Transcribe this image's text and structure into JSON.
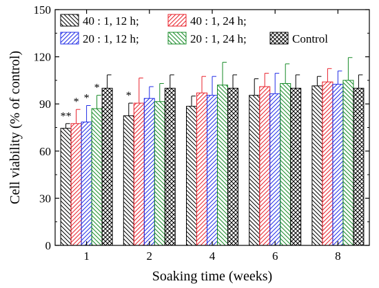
{
  "chart_data": {
    "type": "bar",
    "title": "",
    "xlabel": "Soaking time (weeks)",
    "ylabel": "Cell viability (% of control)",
    "categories": [
      "1",
      "2",
      "4",
      "6",
      "8"
    ],
    "ylim": [
      0,
      150
    ],
    "yticks": [
      "0",
      "30",
      "60",
      "90",
      "120",
      "150"
    ],
    "grid": false,
    "legend_position": "top",
    "series": [
      {
        "name": "40 : 1, 12 h;",
        "color": "#000000",
        "pattern": "hatch-back",
        "values": [
          74.5,
          82.5,
          88.5,
          95.5,
          101.5
        ],
        "errors": [
          3.0,
          8.0,
          6.5,
          10.5,
          6.0
        ],
        "sig": [
          "**",
          "*",
          "",
          "",
          ""
        ]
      },
      {
        "name": "40 : 1, 24 h;",
        "color": "#e8202a",
        "pattern": "hatch-fwd",
        "values": [
          77.5,
          90.5,
          97.0,
          101.0,
          104.0
        ],
        "errors": [
          9.0,
          16.0,
          10.5,
          8.5,
          8.5
        ],
        "sig": [
          "*",
          "",
          "",
          "",
          ""
        ]
      },
      {
        "name": "20 : 1, 12 h;",
        "color": "#1f2be6",
        "pattern": "hatch-fwd",
        "values": [
          78.5,
          93.5,
          95.5,
          96.5,
          102.5
        ],
        "errors": [
          10.5,
          7.5,
          12.0,
          13.0,
          8.5
        ],
        "sig": [
          "*",
          "",
          "",
          "",
          ""
        ]
      },
      {
        "name": "20 : 1, 24 h;",
        "color": "#158a26",
        "pattern": "hatch-back",
        "values": [
          87.0,
          91.5,
          102.0,
          103.0,
          105.0
        ],
        "errors": [
          8.5,
          11.5,
          14.5,
          12.5,
          14.5
        ],
        "sig": [
          "*",
          "",
          "",
          "",
          ""
        ]
      },
      {
        "name": "Control",
        "color": "#000000",
        "pattern": "crosshatch",
        "values": [
          100,
          100,
          100,
          100,
          100
        ],
        "errors": [
          8.5,
          8.5,
          8.5,
          8.5,
          8.5
        ],
        "sig": [
          "",
          "",
          "",
          "",
          ""
        ]
      }
    ]
  }
}
